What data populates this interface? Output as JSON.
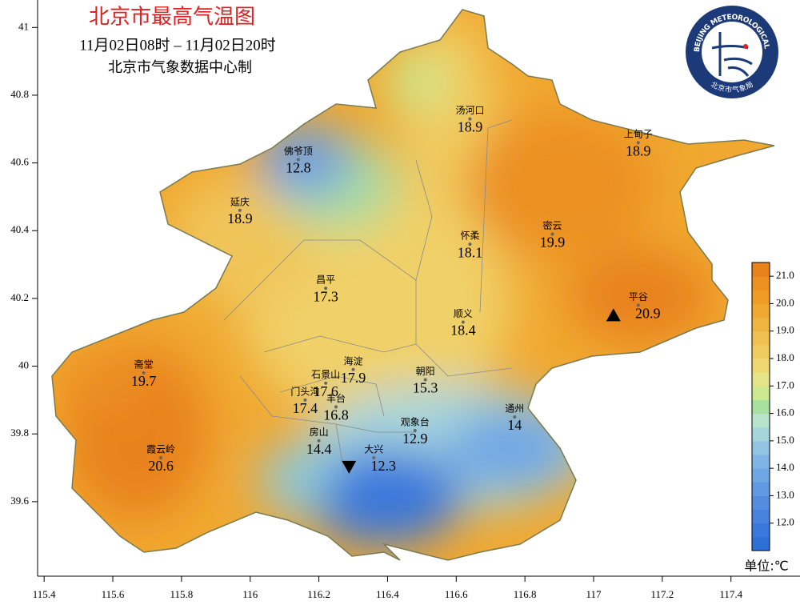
{
  "header": {
    "title": "北京市最高气温图",
    "period": "11月02日08时 – 11月02日20时",
    "source": "北京市气象数据中心制"
  },
  "logo": {
    "ring_text": "BEIJING METEOROLOGICAL SERVICE",
    "name": "北京市气象局"
  },
  "map": {
    "xlim": [
      115.381,
      117.601
    ],
    "ylim": [
      39.38,
      41.081
    ],
    "xticks": [
      115.4,
      115.6,
      115.8,
      116,
      116.2,
      116.4,
      116.6,
      116.8,
      117,
      117.2,
      117.4
    ],
    "yticks": [
      41,
      40.8,
      40.6,
      40.4,
      40.2,
      40,
      39.8,
      39.6
    ],
    "stations": [
      {
        "name": "汤河口",
        "value": 18.9,
        "lon": 116.64,
        "lat": 40.73
      },
      {
        "name": "上甸子",
        "value": 18.9,
        "lon": 117.13,
        "lat": 40.66
      },
      {
        "name": "佛爷顶",
        "value": 12.8,
        "lon": 116.14,
        "lat": 40.61
      },
      {
        "name": "延庆",
        "value": 18.9,
        "lon": 115.97,
        "lat": 40.46
      },
      {
        "name": "怀柔",
        "value": 18.1,
        "lon": 116.64,
        "lat": 40.36
      },
      {
        "name": "密云",
        "value": 19.9,
        "lon": 116.88,
        "lat": 40.39
      },
      {
        "name": "昌平",
        "value": 17.3,
        "lon": 116.22,
        "lat": 40.23
      },
      {
        "name": "平谷",
        "value": 20.9,
        "lon": 117.13,
        "lat": 40.18
      },
      {
        "name": "顺义",
        "value": 18.4,
        "lon": 116.62,
        "lat": 40.13
      },
      {
        "name": "斋堂",
        "value": 19.7,
        "lon": 115.69,
        "lat": 39.98
      },
      {
        "name": "海淀",
        "value": 17.9,
        "lon": 116.3,
        "lat": 39.99
      },
      {
        "name": "石景山",
        "value": 17.6,
        "lon": 116.22,
        "lat": 39.95
      },
      {
        "name": "朝阳",
        "value": 15.3,
        "lon": 116.51,
        "lat": 39.96
      },
      {
        "name": "门头沟",
        "value": 17.4,
        "lon": 116.16,
        "lat": 39.9
      },
      {
        "name": "丰台",
        "value": 16.8,
        "lon": 116.25,
        "lat": 39.88
      },
      {
        "name": "通州",
        "value": 14.0,
        "lon": 116.77,
        "lat": 39.85
      },
      {
        "name": "观象台",
        "value": 12.9,
        "lon": 116.48,
        "lat": 39.81
      },
      {
        "name": "房山",
        "value": 14.4,
        "lon": 116.2,
        "lat": 39.78
      },
      {
        "name": "大兴",
        "value": 12.3,
        "lon": 116.36,
        "lat": 39.73
      },
      {
        "name": "霞云岭",
        "value": 20.6,
        "lon": 115.74,
        "lat": 39.73
      }
    ]
  },
  "colorbar": {
    "range": [
      11,
      21.5
    ],
    "unit": "单位:℃",
    "colors": [
      "#2f6fd8",
      "#3a78dc",
      "#4682de",
      "#548de0",
      "#6199e2",
      "#6fa6e4",
      "#80b4e6",
      "#94c4e4",
      "#a6d6dc",
      "#b8e4cc",
      "#a8e0a0",
      "#cce890",
      "#e6e48a",
      "#f0d870",
      "#f0cc60",
      "#f0c050",
      "#f0b440",
      "#f0a830",
      "#f09c24",
      "#ec9020",
      "#e8821c"
    ],
    "ticks": [
      {
        "value": 12,
        "label": "12.0"
      },
      {
        "value": 13,
        "label": "13.0"
      },
      {
        "value": 14,
        "label": "14.0"
      },
      {
        "value": 15,
        "label": "15.0"
      },
      {
        "value": 16,
        "label": "16.0"
      },
      {
        "value": 17,
        "label": "17.0"
      },
      {
        "value": 18,
        "label": "18.0"
      },
      {
        "value": 19,
        "label": "19.0"
      },
      {
        "value": 20,
        "label": "20.0"
      },
      {
        "value": 21,
        "label": "21.0"
      }
    ]
  }
}
